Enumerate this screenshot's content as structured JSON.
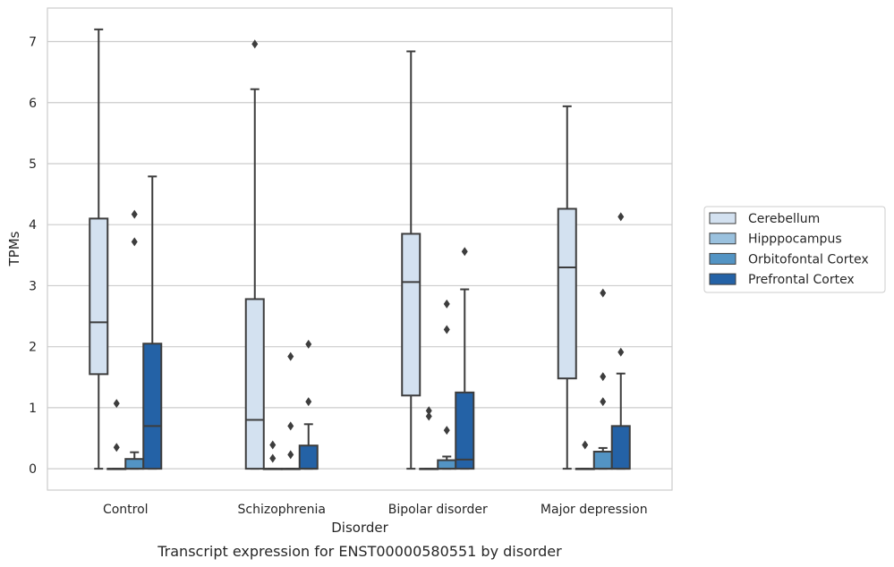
{
  "chart_data": {
    "type": "box",
    "title": "Transcript expression for ENST00000580551 by disorder",
    "xlabel": "Disorder",
    "ylabel": "TPMs",
    "ylim": [
      -0.35,
      7.55
    ],
    "yticks": [
      0,
      1,
      2,
      3,
      4,
      5,
      6,
      7
    ],
    "grid": "horizontal",
    "legend_position": "right",
    "categories": [
      "Control",
      "Schizophrenia",
      "Bipolar disorder",
      "Major depression"
    ],
    "series": [
      {
        "name": "Cerebellum",
        "color": "#d3e1f0",
        "boxes": [
          {
            "q1": 1.55,
            "median": 2.4,
            "q3": 4.1,
            "whislo": 0.0,
            "whishi": 7.2,
            "fliers": []
          },
          {
            "q1": 0.0,
            "median": 0.8,
            "q3": 2.78,
            "whislo": 0.0,
            "whishi": 6.22,
            "fliers": [
              6.96
            ]
          },
          {
            "q1": 1.2,
            "median": 3.06,
            "q3": 3.85,
            "whislo": 0.0,
            "whishi": 6.84,
            "fliers": []
          },
          {
            "q1": 1.48,
            "median": 3.3,
            "q3": 4.26,
            "whislo": 0.0,
            "whishi": 5.94,
            "fliers": []
          }
        ]
      },
      {
        "name": "Hipppocampus",
        "color": "#9ac1de",
        "boxes": [
          {
            "q1": 0.0,
            "median": 0.0,
            "q3": 0.0,
            "whislo": 0.0,
            "whishi": 0.0,
            "fliers": [
              1.07,
              0.35
            ]
          },
          {
            "q1": 0.0,
            "median": 0.0,
            "q3": 0.0,
            "whislo": 0.0,
            "whishi": 0.0,
            "fliers": [
              0.39,
              0.17
            ]
          },
          {
            "q1": 0.0,
            "median": 0.0,
            "q3": 0.0,
            "whislo": 0.0,
            "whishi": 0.0,
            "fliers": [
              0.95,
              0.86
            ]
          },
          {
            "q1": 0.0,
            "median": 0.0,
            "q3": 0.0,
            "whislo": 0.0,
            "whishi": 0.0,
            "fliers": [
              0.39
            ]
          }
        ]
      },
      {
        "name": "Orbitofontal Cortex",
        "color": "#5394c4",
        "boxes": [
          {
            "q1": 0.0,
            "median": 0.0,
            "q3": 0.16,
            "whislo": 0.0,
            "whishi": 0.27,
            "fliers": [
              4.17,
              3.72
            ]
          },
          {
            "q1": 0.0,
            "median": 0.0,
            "q3": 0.0,
            "whislo": 0.0,
            "whishi": 0.0,
            "fliers": [
              1.84,
              0.7,
              0.23
            ]
          },
          {
            "q1": 0.0,
            "median": 0.0,
            "q3": 0.14,
            "whislo": 0.0,
            "whishi": 0.2,
            "fliers": [
              2.7,
              2.28,
              0.63
            ]
          },
          {
            "q1": 0.0,
            "median": 0.0,
            "q3": 0.28,
            "whislo": 0.0,
            "whishi": 0.34,
            "fliers": [
              2.88,
              1.51,
              1.1
            ]
          }
        ]
      },
      {
        "name": "Prefrontal Cortex",
        "color": "#2462a6",
        "boxes": [
          {
            "q1": 0.0,
            "median": 0.7,
            "q3": 2.05,
            "whislo": 0.0,
            "whishi": 4.79,
            "fliers": []
          },
          {
            "q1": 0.0,
            "median": 0.0,
            "q3": 0.38,
            "whislo": 0.0,
            "whishi": 0.73,
            "fliers": [
              2.04,
              1.1
            ]
          },
          {
            "q1": 0.0,
            "median": 0.15,
            "q3": 1.25,
            "whislo": 0.0,
            "whishi": 2.94,
            "fliers": [
              3.56
            ]
          },
          {
            "q1": 0.0,
            "median": 0.0,
            "q3": 0.7,
            "whislo": 0.0,
            "whishi": 1.56,
            "fliers": [
              4.13,
              1.91
            ]
          }
        ]
      }
    ]
  }
}
